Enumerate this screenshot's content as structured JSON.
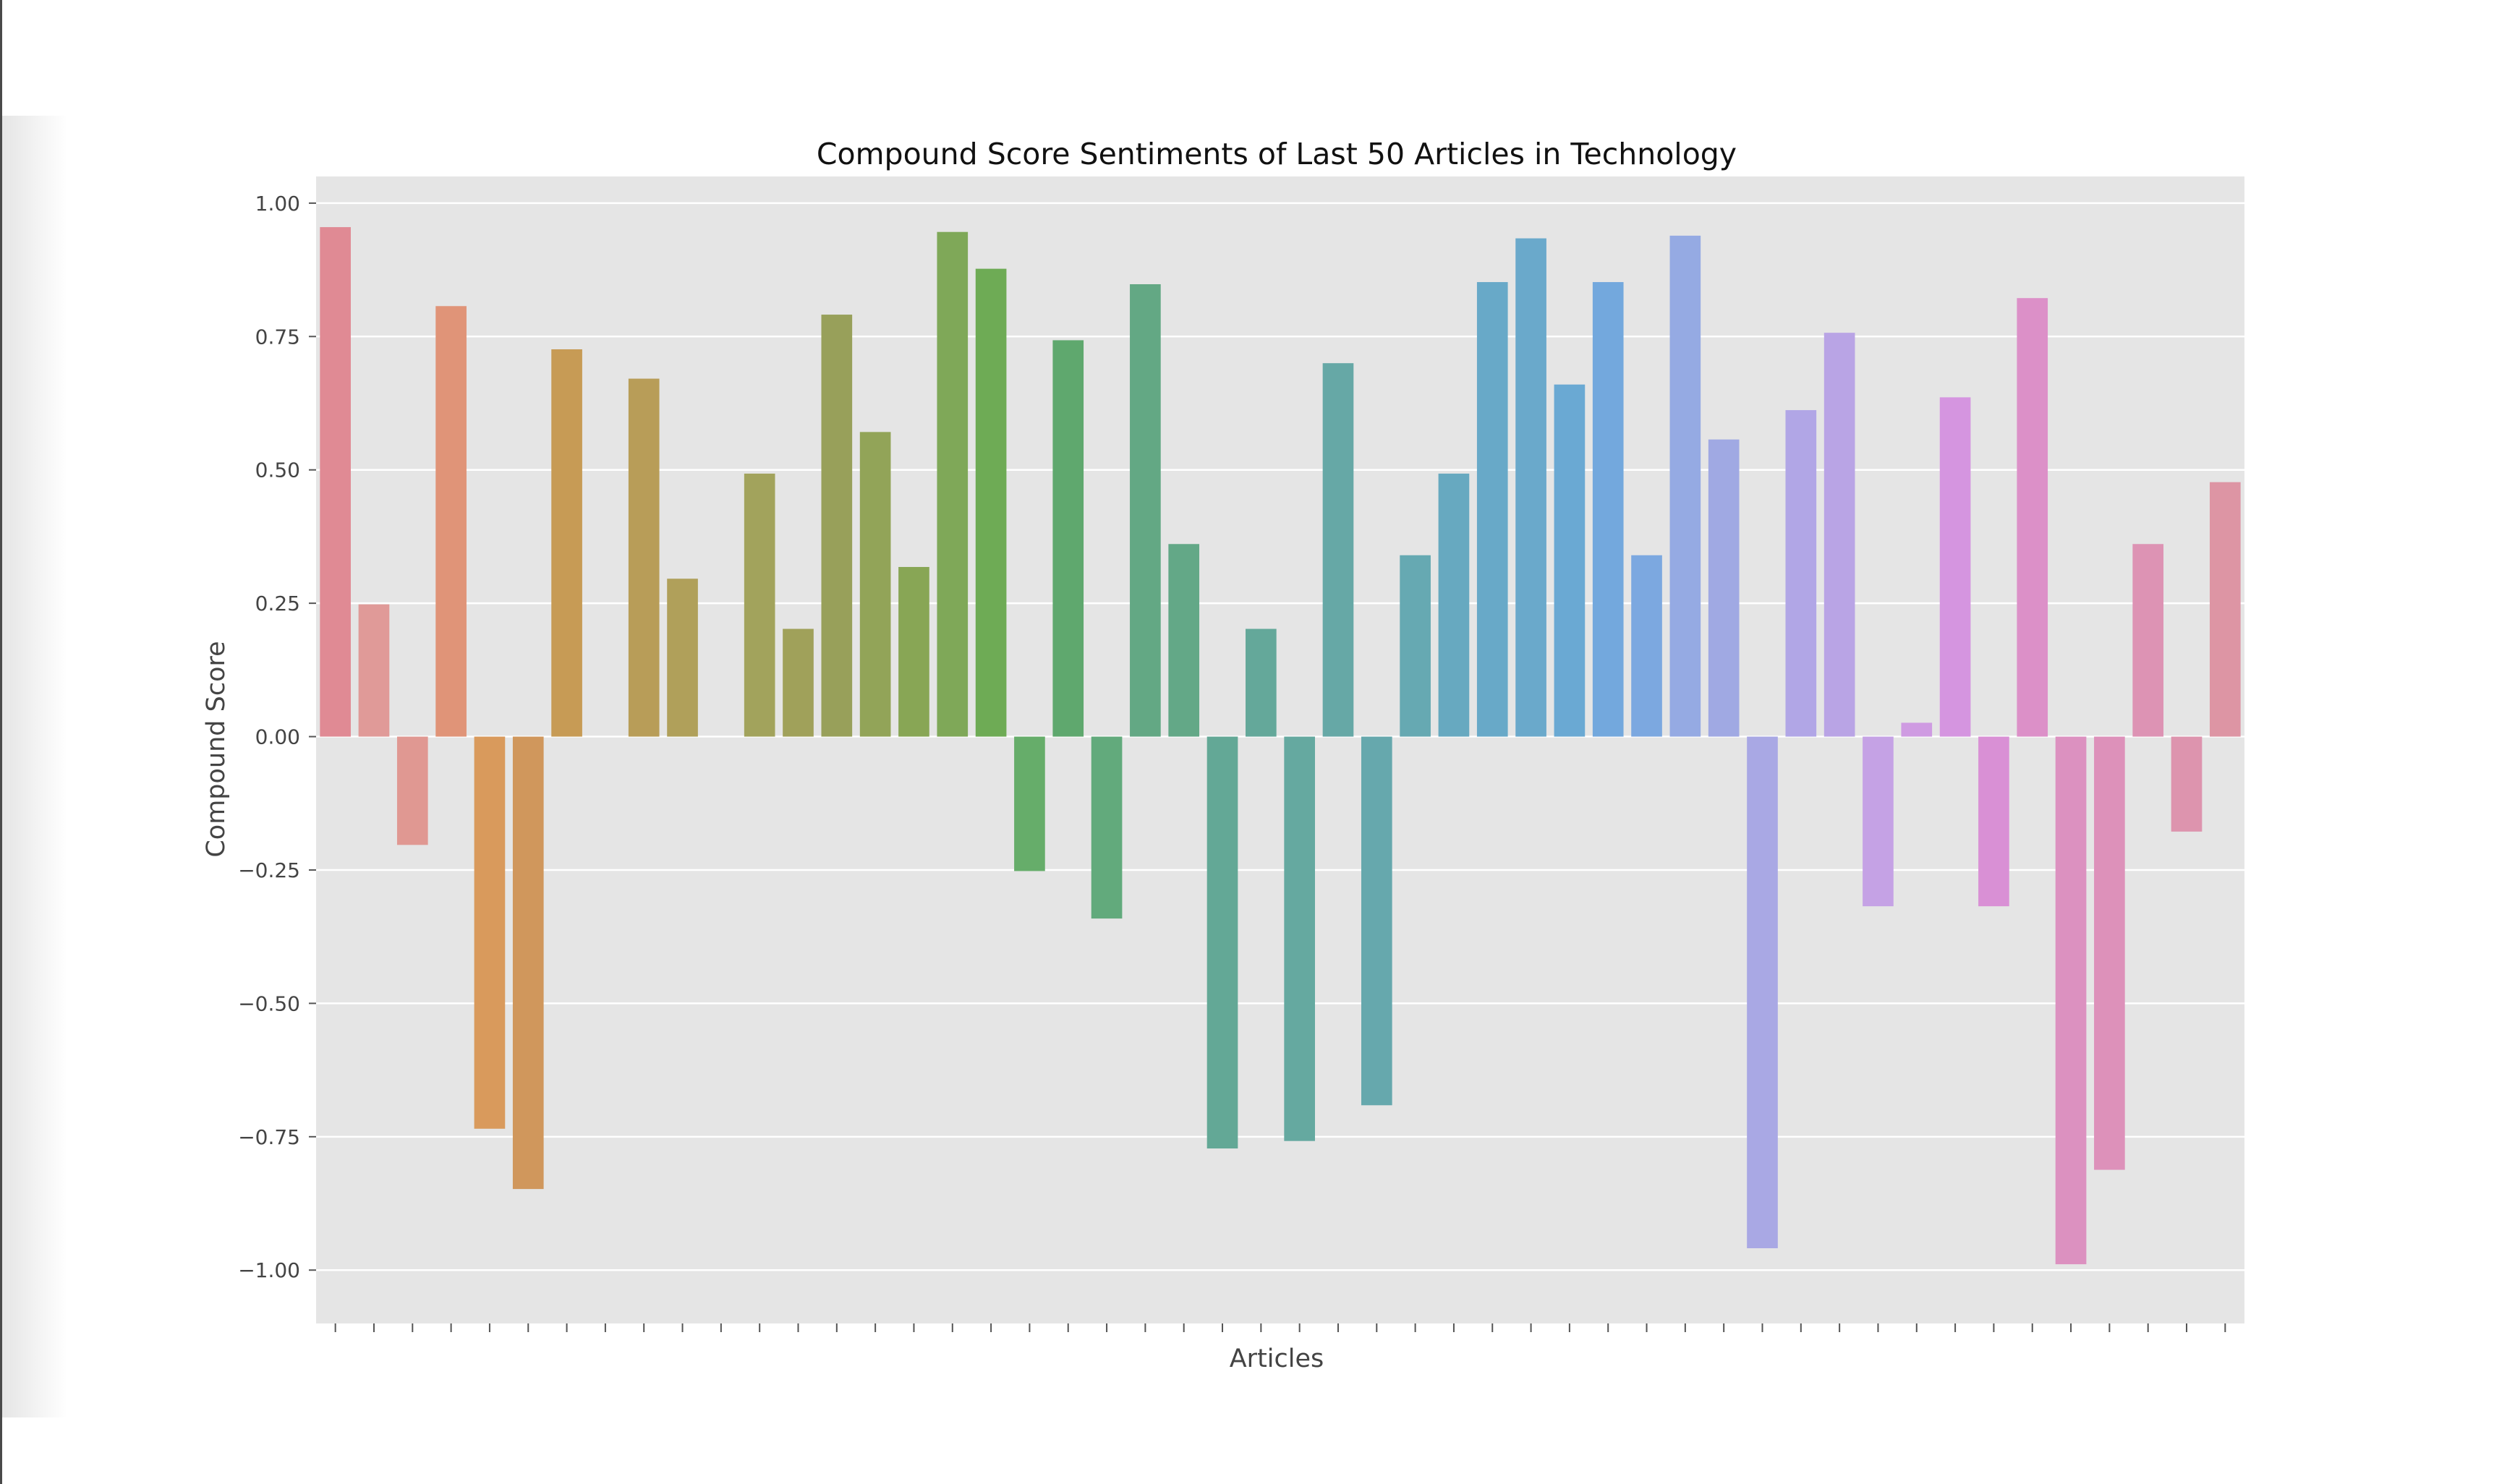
{
  "chart_data": {
    "type": "bar",
    "title": "Compound Score Sentiments of Last 50 Articles in Technology",
    "xlabel": "Articles",
    "ylabel": "Compound Score",
    "ylim": [
      -1.1,
      1.05
    ],
    "yticks": [
      1.0,
      0.75,
      0.5,
      0.25,
      0.0,
      -0.25,
      -0.5,
      -0.75,
      -1.0
    ],
    "ytick_labels": [
      "1.00",
      "0.75",
      "0.50",
      "0.25",
      "0.00",
      "−0.25",
      "−0.50",
      "−0.75",
      "−1.00"
    ],
    "grid": true,
    "legend": false,
    "background": "#e5e5e5",
    "gridline_color": "#ffffff",
    "values": [
      0.955,
      0.248,
      -0.203,
      0.807,
      -0.735,
      -0.848,
      0.726,
      0.0,
      0.671,
      0.296,
      0.0,
      0.493,
      0.202,
      0.791,
      0.571,
      0.318,
      0.946,
      0.877,
      -0.252,
      0.743,
      -0.341,
      0.848,
      0.361,
      -0.772,
      0.202,
      -0.758,
      0.7,
      -0.691,
      0.34,
      0.493,
      0.852,
      0.934,
      0.66,
      0.852,
      0.34,
      0.939,
      0.557,
      -0.959,
      0.612,
      0.757,
      -0.318,
      0.026,
      0.636,
      -0.318,
      0.822,
      -0.989,
      -0.812,
      0.361,
      -0.178,
      0.477
    ],
    "colors": [
      "#e08a94",
      "#e09a98",
      "#e09892",
      "#e09478",
      "#d99a5c",
      "#d0975c",
      "#c79b55",
      "#c09d55",
      "#b89d58",
      "#b0a05a",
      "#a8a25b",
      "#a2a35c",
      "#a0a15a",
      "#98a05a",
      "#92a458",
      "#88a655",
      "#7fa858",
      "#6eab55",
      "#66ad6a",
      "#5fa86e",
      "#62aa7c",
      "#63a884",
      "#63a887",
      "#63a896",
      "#64a89a",
      "#65a9a0",
      "#66a8a6",
      "#66a8ad",
      "#66a9b2",
      "#67a9c0",
      "#68a9c8",
      "#6aa9cb",
      "#6aa9d3",
      "#73a8dd",
      "#7ca8e0",
      "#95aae3",
      "#a0a9e3",
      "#a9a8e4",
      "#b1a6e6",
      "#b9a4e5",
      "#c5a2e5",
      "#cf9be2",
      "#d595e0",
      "#d990d5",
      "#dc90c8",
      "#dc91c0",
      "#dd91ba",
      "#dd93b4",
      "#dd94ae",
      "#dd95a4"
    ]
  }
}
